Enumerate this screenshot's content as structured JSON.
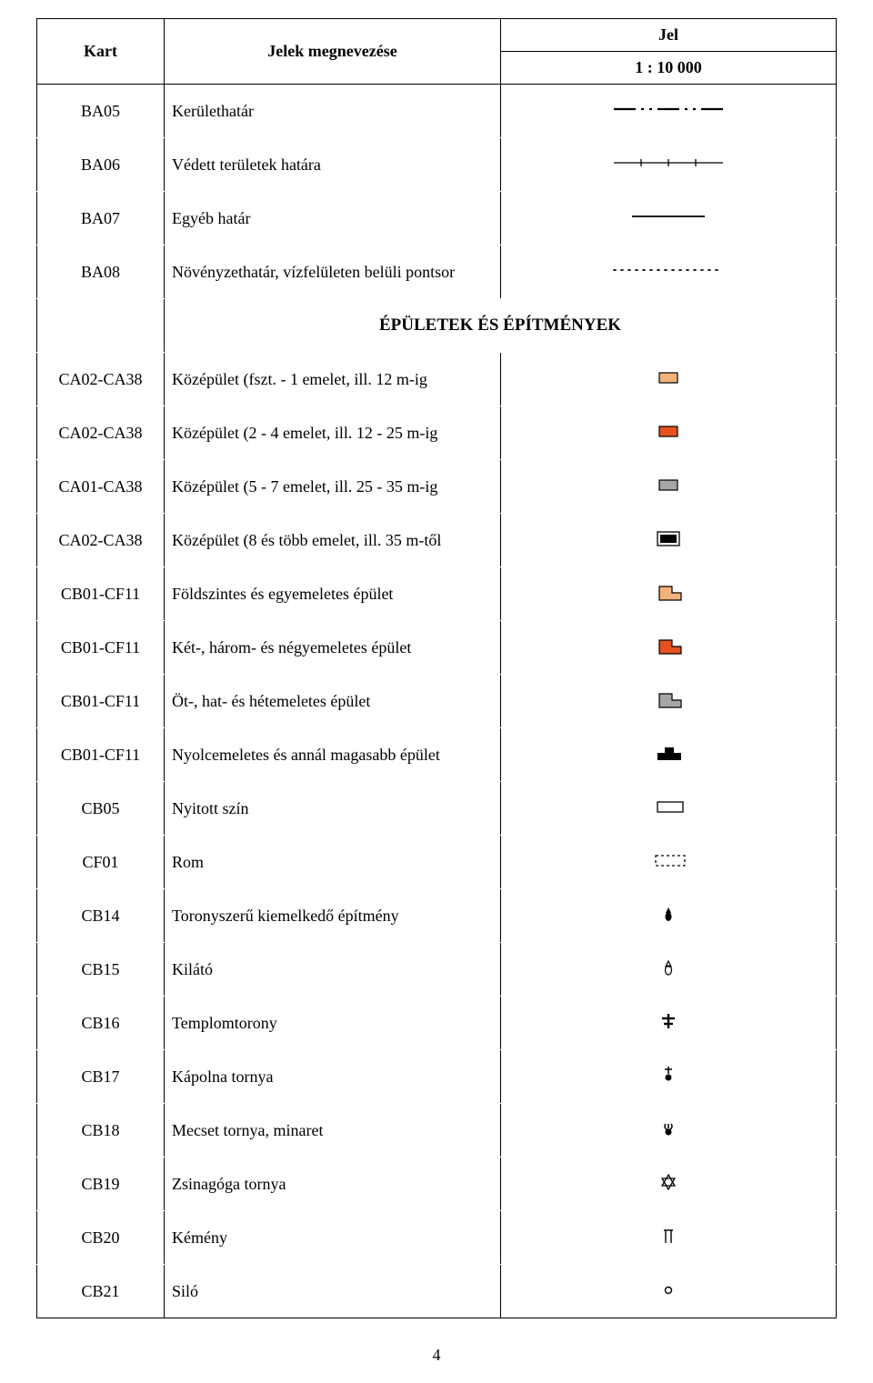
{
  "header": {
    "kart": "Kart",
    "desc": "Jelek megnevezése",
    "jel_top": "Jel",
    "jel_bot": "1 : 10 000"
  },
  "section_header": "ÉPÜLETEK ÉS ÉPÍTMÉNYEK",
  "rows": [
    {
      "id": "BA05",
      "kart": "BA05",
      "desc": "Kerülethatár",
      "symbol": "dash-dot-line",
      "color": "#000"
    },
    {
      "id": "BA06",
      "kart": "BA06",
      "desc": "Védett területek határa",
      "symbol": "tick-line",
      "color": "#000"
    },
    {
      "id": "BA07",
      "kart": "BA07",
      "desc": "Egyéb határ",
      "symbol": "solid-line",
      "color": "#000"
    },
    {
      "id": "BA08",
      "kart": "BA08",
      "desc": "Növényzethatár, vízfelületen belüli pontsor",
      "symbol": "dotted-line",
      "color": "#000"
    },
    {
      "id": "CA02a",
      "kart": "CA02-CA38",
      "desc": "Középület (fszt. - 1 emelet, ill. 12 m-ig",
      "symbol": "rect-fill",
      "fill": "#f3b27a",
      "stroke": "#000"
    },
    {
      "id": "CA02b",
      "kart": "CA02-CA38",
      "desc": "Középület (2 - 4 emelet, ill. 12 - 25 m-ig",
      "symbol": "rect-fill",
      "fill": "#e6521e",
      "stroke": "#000"
    },
    {
      "id": "CA01",
      "kart": "CA01-CA38",
      "desc": "Középület (5 - 7 emelet, ill. 25 - 35 m-ig",
      "symbol": "rect-fill",
      "fill": "#a6a6a6",
      "stroke": "#000"
    },
    {
      "id": "CA02d",
      "kart": "CA02-CA38",
      "desc": "Középület (8 és több emelet, ill. 35 m-től",
      "symbol": "rect-double",
      "fill": "#000",
      "stroke": "#000"
    },
    {
      "id": "CB01a",
      "kart": "CB01-CF11",
      "desc": "Földszintes és egyemeletes épület",
      "symbol": "lshape",
      "fill": "#f3b27a",
      "stroke": "#000"
    },
    {
      "id": "CB01b",
      "kart": "CB01-CF11",
      "desc": "Két-, három- és négyemeletes épület",
      "symbol": "lshape",
      "fill": "#e6521e",
      "stroke": "#000"
    },
    {
      "id": "CB01c",
      "kart": "CB01-CF11",
      "desc": "Öt-, hat- és hétemeletes épület",
      "symbol": "lshape",
      "fill": "#a6a6a6",
      "stroke": "#000"
    },
    {
      "id": "CB01d",
      "kart": "CB01-CF11",
      "desc": "Nyolcemeletes és annál magasabb épület",
      "symbol": "cross-block",
      "fill": "#000",
      "stroke": "#000"
    },
    {
      "id": "CB05",
      "kart": "CB05",
      "desc": "Nyitott szín",
      "symbol": "rect-empty",
      "stroke": "#000"
    },
    {
      "id": "CF01",
      "kart": "CF01",
      "desc": "Rom",
      "symbol": "rect-dashed",
      "stroke": "#000"
    },
    {
      "id": "CB14",
      "kart": "CB14",
      "desc": "Toronyszerű kiemelkedő építmény",
      "symbol": "tower-filled",
      "fill": "#000"
    },
    {
      "id": "CB15",
      "kart": "CB15",
      "desc": "Kilátó",
      "symbol": "tower-outline",
      "stroke": "#000"
    },
    {
      "id": "CB16",
      "kart": "CB16",
      "desc": "Templomtorony",
      "symbol": "church-cross",
      "fill": "#000"
    },
    {
      "id": "CB17",
      "kart": "CB17",
      "desc": "Kápolna tornya",
      "symbol": "chapel",
      "fill": "#000"
    },
    {
      "id": "CB18",
      "kart": "CB18",
      "desc": "Mecset tornya, minaret",
      "symbol": "minaret",
      "fill": "#000"
    },
    {
      "id": "CB19",
      "kart": "CB19",
      "desc": "Zsinagóga tornya",
      "symbol": "star-david",
      "stroke": "#000"
    },
    {
      "id": "CB20",
      "kart": "CB20",
      "desc": "Kémény",
      "symbol": "chimney",
      "stroke": "#000"
    },
    {
      "id": "CB21",
      "kart": "CB21",
      "desc": "Siló",
      "symbol": "silo",
      "stroke": "#000"
    }
  ],
  "page_number": "4",
  "symbol_svg_width": 120,
  "symbol_svg_height": 28
}
